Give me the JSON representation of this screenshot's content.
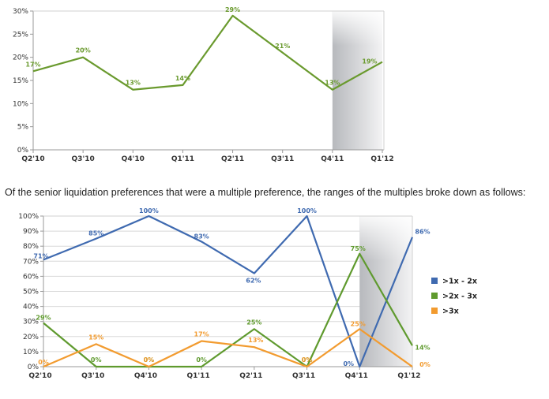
{
  "caption": "Of the senior liquidation preferences that were a multiple preference, the ranges of the multiples broke down as follows:",
  "chart_data": [
    {
      "type": "line",
      "categories": [
        "Q2'10",
        "Q3'10",
        "Q4'10",
        "Q1'11",
        "Q2'11",
        "Q3'11",
        "Q4'11",
        "Q1'12"
      ],
      "yticks": [
        "0%",
        "5%",
        "10%",
        "15%",
        "20%",
        "25%",
        "30%"
      ],
      "ylim": [
        0,
        30
      ],
      "grid": false,
      "shaded_category": "Q1'12",
      "series": [
        {
          "values": [
            17,
            20,
            13,
            14,
            29,
            21,
            13,
            19
          ],
          "labels": [
            "17%",
            "20%",
            "13%",
            "14%",
            "29%",
            "21%",
            "13%",
            "19%"
          ],
          "color": "#6a9a2e"
        }
      ]
    },
    {
      "type": "line",
      "categories": [
        "Q2'10",
        "Q3'10",
        "Q4'10",
        "Q1'11",
        "Q2'11",
        "Q3'11",
        "Q4'11",
        "Q1'12"
      ],
      "yticks": [
        "0%",
        "10%",
        "20%",
        "30%",
        "40%",
        "50%",
        "60%",
        "70%",
        "80%",
        "90%",
        "100%"
      ],
      "ylim": [
        0,
        100
      ],
      "grid": true,
      "shaded_category": "Q1'12",
      "legend_position": "right",
      "series": [
        {
          "name": ">1x - 2x",
          "values": [
            71,
            85,
            100,
            83,
            62,
            100,
            0,
            86
          ],
          "labels": [
            "71%",
            "85%",
            "100%",
            "83%",
            "62%",
            "100%",
            "0%",
            "86%"
          ],
          "color": "#3f6ab0"
        },
        {
          "name": ">2x - 3x",
          "values": [
            29,
            0,
            0,
            0,
            25,
            0,
            75,
            14
          ],
          "labels": [
            "29%",
            "0%",
            "0%",
            "0%",
            "25%",
            "0%",
            "75%",
            "14%"
          ],
          "color": "#5f9a2e"
        },
        {
          "name": ">3x",
          "values": [
            0,
            15,
            0,
            17,
            13,
            0,
            25,
            0
          ],
          "labels": [
            "0%",
            "15%",
            "0%",
            "17%",
            "13%",
            "0%",
            "25%",
            "0%"
          ],
          "color": "#f29b2f"
        }
      ]
    }
  ]
}
